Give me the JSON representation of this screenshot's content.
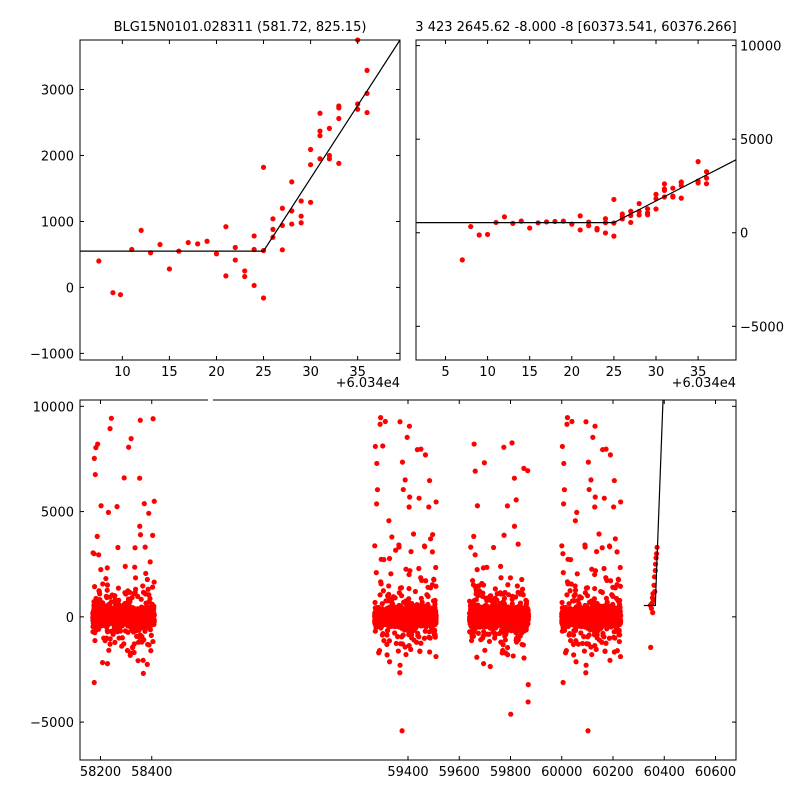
{
  "chart_data": [
    {
      "id": "panel-top-left",
      "type": "scatter",
      "title": "BLG15N0101.028311 (581.72, 825.15)",
      "xlim": [
        5.5,
        39.5
      ],
      "ylim": [
        -1100,
        3750
      ],
      "xticks": [
        10,
        15,
        20,
        25,
        30,
        35
      ],
      "yticks": [
        -1000,
        0,
        1000,
        2000,
        3000
      ],
      "offset_label": "+6.034e4",
      "ytick_side": "left",
      "grid": false,
      "points": [
        [
          7.5,
          400
        ],
        [
          9,
          -80
        ],
        [
          9.8,
          -110
        ],
        [
          11,
          575
        ],
        [
          12,
          865
        ],
        [
          13,
          525
        ],
        [
          14,
          650
        ],
        [
          15,
          280
        ],
        [
          16,
          550
        ],
        [
          17,
          680
        ],
        [
          18,
          660
        ],
        [
          19,
          700
        ],
        [
          20,
          510
        ],
        [
          21,
          920
        ],
        [
          21,
          175
        ],
        [
          22,
          605
        ],
        [
          22,
          415
        ],
        [
          23,
          250
        ],
        [
          23,
          165
        ],
        [
          24,
          780
        ],
        [
          24,
          575
        ],
        [
          24,
          30
        ],
        [
          25,
          1820
        ],
        [
          25,
          560
        ],
        [
          25,
          -160
        ],
        [
          26,
          1040
        ],
        [
          26,
          880
        ],
        [
          26,
          760
        ],
        [
          27,
          1200
        ],
        [
          27,
          940
        ],
        [
          27,
          570
        ],
        [
          28,
          1600
        ],
        [
          28,
          1160
        ],
        [
          28,
          960
        ],
        [
          29,
          1310
        ],
        [
          29,
          1080
        ],
        [
          29,
          980
        ],
        [
          30,
          2090
        ],
        [
          30,
          1860
        ],
        [
          30,
          1290
        ],
        [
          31,
          2640
        ],
        [
          31,
          2370
        ],
        [
          31,
          2300
        ],
        [
          31,
          1950
        ],
        [
          32,
          2410
        ],
        [
          32,
          2000
        ],
        [
          32,
          1950
        ],
        [
          33,
          2750
        ],
        [
          33,
          2720
        ],
        [
          33,
          2560
        ],
        [
          33,
          1880
        ],
        [
          35,
          2780
        ],
        [
          35,
          2700
        ],
        [
          35,
          3750
        ],
        [
          36,
          3290
        ],
        [
          36,
          2940
        ],
        [
          36,
          2650
        ]
      ],
      "fit_line": [
        [
          5.5,
          550
        ],
        [
          25,
          550
        ],
        [
          39.5,
          3750
        ]
      ]
    },
    {
      "id": "panel-top-right",
      "type": "scatter",
      "title": "3 423 2645.62 -8.000 -8 [60373.541, 60376.266]",
      "xlim": [
        1.5,
        39.5
      ],
      "ylim": [
        -6800,
        10300
      ],
      "xticks": [
        5,
        10,
        15,
        20,
        25,
        30,
        35
      ],
      "yticks": [
        -5000,
        0,
        5000,
        10000
      ],
      "offset_label": "+6.034e4",
      "ytick_side": "right",
      "grid": false,
      "points": [
        [
          7,
          -1450
        ],
        [
          8,
          330
        ],
        [
          9,
          -120
        ],
        [
          10,
          -90
        ],
        [
          11,
          550
        ],
        [
          12,
          850
        ],
        [
          13,
          500
        ],
        [
          14,
          620
        ],
        [
          15,
          250
        ],
        [
          16,
          530
        ],
        [
          17,
          580
        ],
        [
          18,
          600
        ],
        [
          19,
          620
        ],
        [
          20,
          460
        ],
        [
          21,
          900
        ],
        [
          21,
          150
        ],
        [
          22,
          570
        ],
        [
          22,
          380
        ],
        [
          23,
          230
        ],
        [
          23,
          150
        ],
        [
          24,
          750
        ],
        [
          24,
          540
        ],
        [
          24,
          -10
        ],
        [
          25,
          1780
        ],
        [
          25,
          520
        ],
        [
          25,
          -180
        ],
        [
          26,
          1000
        ],
        [
          26,
          850
        ],
        [
          26,
          740
        ],
        [
          27,
          1150
        ],
        [
          27,
          920
        ],
        [
          27,
          550
        ],
        [
          28,
          1560
        ],
        [
          28,
          1140
        ],
        [
          28,
          950
        ],
        [
          29,
          1280
        ],
        [
          29,
          1060
        ],
        [
          29,
          960
        ],
        [
          30,
          2050
        ],
        [
          30,
          1820
        ],
        [
          30,
          1270
        ],
        [
          31,
          2610
        ],
        [
          31,
          2340
        ],
        [
          31,
          2260
        ],
        [
          31,
          1910
        ],
        [
          32,
          2380
        ],
        [
          32,
          1960
        ],
        [
          32,
          1910
        ],
        [
          33,
          2710
        ],
        [
          33,
          2690
        ],
        [
          33,
          2520
        ],
        [
          33,
          1850
        ],
        [
          35,
          2760
        ],
        [
          35,
          2660
        ],
        [
          35,
          3800
        ],
        [
          36,
          3260
        ],
        [
          36,
          2920
        ],
        [
          36,
          2620
        ]
      ],
      "fit_line": [
        [
          1.5,
          540
        ],
        [
          25,
          540
        ],
        [
          39.5,
          3900
        ]
      ]
    },
    {
      "id": "panel-bottom",
      "type": "scatter",
      "title": "",
      "xlim": [
        58120,
        60680
      ],
      "ylim": [
        -6800,
        10300
      ],
      "xticks": [
        58200,
        58400,
        59400,
        59600,
        59800,
        60000,
        60200,
        60400,
        60600
      ],
      "yticks": [
        -5000,
        0,
        5000,
        10000
      ],
      "ytick_side": "left",
      "grid": false,
      "broken_x_axis": true,
      "seasons": [
        [
          58170,
          58410
        ],
        [
          59270,
          59510
        ],
        [
          59640,
          59870
        ],
        [
          60000,
          60230
        ]
      ],
      "event_points": [
        [
          60346,
          550
        ],
        [
          60347,
          -1450
        ],
        [
          60350,
          400
        ],
        [
          60352,
          650
        ],
        [
          60354,
          900
        ],
        [
          60355,
          200
        ],
        [
          60356,
          1100
        ],
        [
          60358,
          800
        ],
        [
          60360,
          1500
        ],
        [
          60362,
          1900
        ],
        [
          60363,
          1200
        ],
        [
          60365,
          2200
        ],
        [
          60366,
          2500
        ],
        [
          60368,
          2800
        ],
        [
          60370,
          3000
        ],
        [
          60372,
          3300
        ]
      ],
      "fit_line": [
        [
          60320,
          540
        ],
        [
          60365,
          540
        ],
        [
          60395,
          10300
        ]
      ]
    }
  ]
}
